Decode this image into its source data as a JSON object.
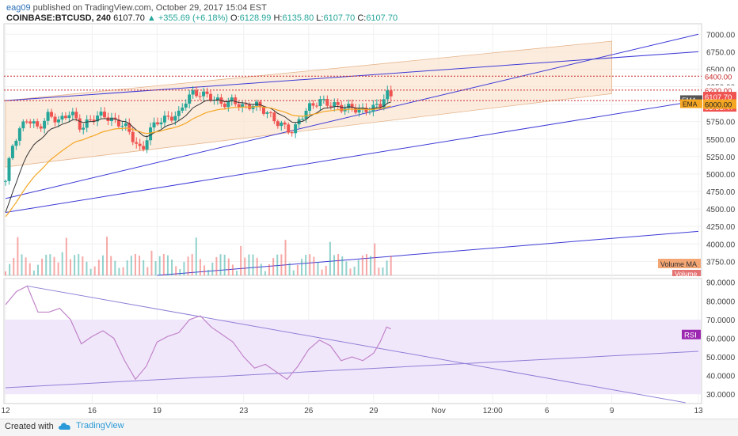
{
  "header": {
    "user": "eag09",
    "published_text": "published on TradingView.com, October 29, 2017 15:04 EST",
    "symbol": "COINBASE:BTCUSD, 240",
    "last": "6107.70",
    "change": "+355.69 (+6.18%)",
    "o_label": "O:",
    "o": "6128.99",
    "h_label": "H:",
    "h": "6135.80",
    "l_label": "L:",
    "l": "6107.70",
    "c_label": "C:",
    "c": "6107.70"
  },
  "footer": {
    "created_with": "Created with",
    "brand": "TradingView"
  },
  "colors": {
    "up": "#26a69a",
    "down": "#ef5350",
    "trendline": "#3d3ad6",
    "dotted": "#c62828",
    "ema_fast": "#333333",
    "ema_slow": "#f5a623",
    "channel_fill": "#fbe6d3",
    "rsi_line": "#c084c9",
    "rsi_band": "#f1e7fb"
  },
  "chart_data": [
    {
      "type": "candlestick",
      "ylim": [
        3550,
        7150
      ],
      "x_range": [
        0,
        32
      ],
      "x_ticks": [
        {
          "x": 0,
          "label": "12"
        },
        {
          "x": 4,
          "label": "16"
        },
        {
          "x": 7,
          "label": "19"
        },
        {
          "x": 11,
          "label": "23"
        },
        {
          "x": 14,
          "label": "26"
        },
        {
          "x": 17,
          "label": "29"
        },
        {
          "x": 20,
          "label": "Nov"
        },
        {
          "x": 22.5,
          "label": "12:00"
        },
        {
          "x": 25,
          "label": "6"
        },
        {
          "x": 28,
          "label": "9"
        },
        {
          "x": 32,
          "label": "13"
        }
      ],
      "y_ticks": [
        7000,
        6750,
        6500,
        6250,
        6000,
        5750,
        5500,
        5250,
        5000,
        4750,
        4500,
        4250,
        4000,
        3750
      ],
      "y_tick_labels": [
        "7000.00",
        "6750.00",
        "6500.00",
        "6250.00",
        "6000.00",
        "5750.00",
        "5500.00",
        "5250.00",
        "5000.00",
        "4750.00",
        "4500.00",
        "4250.00",
        "4000.00",
        "3750.00"
      ],
      "series": [
        {
          "x": 0,
          "y": 4900
        },
        {
          "x": 0.3,
          "y": 5400
        },
        {
          "x": 0.6,
          "y": 5600
        },
        {
          "x": 1,
          "y": 5800
        },
        {
          "x": 1.5,
          "y": 5650
        },
        {
          "x": 2,
          "y": 5850
        },
        {
          "x": 2.5,
          "y": 5750
        },
        {
          "x": 3,
          "y": 5900
        },
        {
          "x": 3.5,
          "y": 5650
        },
        {
          "x": 4,
          "y": 5800
        },
        {
          "x": 4.5,
          "y": 5850
        },
        {
          "x": 5,
          "y": 5750
        },
        {
          "x": 5.5,
          "y": 5700
        },
        {
          "x": 6,
          "y": 5450
        },
        {
          "x": 6.3,
          "y": 5300
        },
        {
          "x": 6.6,
          "y": 5600
        },
        {
          "x": 7,
          "y": 5750
        },
        {
          "x": 7.5,
          "y": 5800
        },
        {
          "x": 8,
          "y": 5850
        },
        {
          "x": 8.3,
          "y": 6050
        },
        {
          "x": 8.6,
          "y": 6150
        },
        {
          "x": 9,
          "y": 6150
        },
        {
          "x": 9.5,
          "y": 6100
        },
        {
          "x": 10,
          "y": 6000
        },
        {
          "x": 10.5,
          "y": 6050
        },
        {
          "x": 11,
          "y": 5950
        },
        {
          "x": 11.5,
          "y": 6000
        },
        {
          "x": 12,
          "y": 5900
        },
        {
          "x": 12.5,
          "y": 5750
        },
        {
          "x": 13,
          "y": 5650
        },
        {
          "x": 13.3,
          "y": 5600
        },
        {
          "x": 13.6,
          "y": 5800
        },
        {
          "x": 14,
          "y": 5950
        },
        {
          "x": 14.5,
          "y": 6050
        },
        {
          "x": 15,
          "y": 6000
        },
        {
          "x": 15.5,
          "y": 5950
        },
        {
          "x": 16,
          "y": 5950
        },
        {
          "x": 16.5,
          "y": 5900
        },
        {
          "x": 17,
          "y": 5950
        },
        {
          "x": 17.3,
          "y": 6000
        },
        {
          "x": 17.6,
          "y": 6150
        },
        {
          "x": 17.8,
          "y": 6107.7
        }
      ],
      "price_levels": [
        6400,
        6200,
        6050
      ],
      "price_level_labels": [
        "6400.00",
        "6200.00",
        "6107.70",
        "03:55:47",
        "6000.00"
      ],
      "indicator_labels": [
        "EMA",
        "EMA"
      ],
      "volume_labels": [
        "Volume MA",
        "Volume"
      ]
    },
    {
      "type": "line",
      "name": "RSI",
      "ylim": [
        25,
        92
      ],
      "y_ticks": [
        90,
        80,
        70,
        60,
        50,
        40,
        30
      ],
      "y_tick_labels": [
        "90.0000",
        "80.0000",
        "70.0000",
        "60.0000",
        "50.0000",
        "40.0000",
        "30.0000"
      ],
      "band": [
        30,
        70
      ],
      "series": [
        {
          "x": 0,
          "y": 78
        },
        {
          "x": 0.5,
          "y": 85
        },
        {
          "x": 1,
          "y": 88
        },
        {
          "x": 1.5,
          "y": 74
        },
        {
          "x": 2,
          "y": 74
        },
        {
          "x": 2.5,
          "y": 76
        },
        {
          "x": 3,
          "y": 70
        },
        {
          "x": 3.5,
          "y": 57
        },
        {
          "x": 4,
          "y": 61
        },
        {
          "x": 4.5,
          "y": 64
        },
        {
          "x": 5,
          "y": 60
        },
        {
          "x": 5.5,
          "y": 48
        },
        {
          "x": 6,
          "y": 38
        },
        {
          "x": 6.5,
          "y": 45
        },
        {
          "x": 7,
          "y": 58
        },
        {
          "x": 7.5,
          "y": 61
        },
        {
          "x": 8,
          "y": 63
        },
        {
          "x": 8.5,
          "y": 70
        },
        {
          "x": 9,
          "y": 72
        },
        {
          "x": 9.5,
          "y": 66
        },
        {
          "x": 10,
          "y": 62
        },
        {
          "x": 10.5,
          "y": 58
        },
        {
          "x": 11,
          "y": 50
        },
        {
          "x": 11.5,
          "y": 44
        },
        {
          "x": 12,
          "y": 46
        },
        {
          "x": 12.5,
          "y": 42
        },
        {
          "x": 13,
          "y": 38
        },
        {
          "x": 13.5,
          "y": 45
        },
        {
          "x": 14,
          "y": 54
        },
        {
          "x": 14.5,
          "y": 59
        },
        {
          "x": 15,
          "y": 56
        },
        {
          "x": 15.5,
          "y": 48
        },
        {
          "x": 16,
          "y": 50
        },
        {
          "x": 16.5,
          "y": 48
        },
        {
          "x": 17,
          "y": 52
        },
        {
          "x": 17.3,
          "y": 58
        },
        {
          "x": 17.6,
          "y": 66
        },
        {
          "x": 17.8,
          "y": 65
        }
      ],
      "label": "RSI"
    }
  ]
}
